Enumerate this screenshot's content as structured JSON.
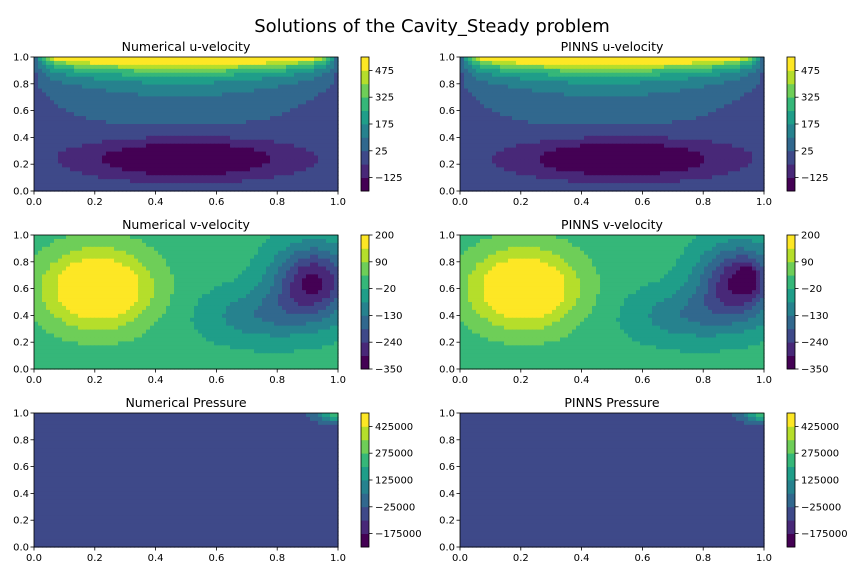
{
  "suptitle": "Solutions of the Cavity_Steady problem",
  "chart_data": [
    {
      "type": "contourf",
      "title": "Numerical u-velocity",
      "field": "u",
      "variant": "numerical",
      "xlim": [
        0,
        1
      ],
      "ylim": [
        0,
        1
      ],
      "xticks": [
        "0.0",
        "0.2",
        "0.4",
        "0.6",
        "0.8",
        "1.0"
      ],
      "yticks": [
        "0.0",
        "0.2",
        "0.4",
        "0.6",
        "0.8",
        "1.0"
      ],
      "colorbar": {
        "ticks": [
          "−125",
          "25",
          "175",
          "325",
          "475"
        ],
        "tick_values": [
          -125,
          25,
          175,
          325,
          475
        ],
        "range": [
          -200,
          550
        ],
        "levels": 10
      }
    },
    {
      "type": "contourf",
      "title": "PINNS u-velocity",
      "field": "u",
      "variant": "pinns",
      "xlim": [
        0,
        1
      ],
      "ylim": [
        0,
        1
      ],
      "xticks": [
        "0.0",
        "0.2",
        "0.4",
        "0.6",
        "0.8",
        "1.0"
      ],
      "yticks": [
        "0.0",
        "0.2",
        "0.4",
        "0.6",
        "0.8",
        "1.0"
      ],
      "colorbar": {
        "ticks": [
          "−125",
          "25",
          "175",
          "325",
          "475"
        ],
        "tick_values": [
          -125,
          25,
          175,
          325,
          475
        ],
        "range": [
          -200,
          550
        ],
        "levels": 10
      }
    },
    {
      "type": "contourf",
      "title": "Numerical v-velocity",
      "field": "v",
      "variant": "numerical",
      "xlim": [
        0,
        1
      ],
      "ylim": [
        0,
        1
      ],
      "xticks": [
        "0.0",
        "0.2",
        "0.4",
        "0.6",
        "0.8",
        "1.0"
      ],
      "yticks": [
        "0.0",
        "0.2",
        "0.4",
        "0.6",
        "0.8",
        "1.0"
      ],
      "colorbar": {
        "ticks": [
          "−350",
          "−240",
          "−130",
          "−20",
          "90",
          "200"
        ],
        "tick_values": [
          -350,
          -240,
          -130,
          -20,
          90,
          200
        ],
        "range": [
          -350,
          200
        ],
        "levels": 10
      }
    },
    {
      "type": "contourf",
      "title": "PINNS v-velocity",
      "field": "v",
      "variant": "pinns",
      "xlim": [
        0,
        1
      ],
      "ylim": [
        0,
        1
      ],
      "xticks": [
        "0.0",
        "0.2",
        "0.4",
        "0.6",
        "0.8",
        "1.0"
      ],
      "yticks": [
        "0.0",
        "0.2",
        "0.4",
        "0.6",
        "0.8",
        "1.0"
      ],
      "colorbar": {
        "ticks": [
          "−350",
          "−240",
          "−130",
          "−20",
          "90",
          "200"
        ],
        "tick_values": [
          -350,
          -240,
          -130,
          -20,
          90,
          200
        ],
        "range": [
          -350,
          200
        ],
        "levels": 10
      }
    },
    {
      "type": "contourf",
      "title": "Numerical Pressure",
      "field": "p",
      "variant": "numerical",
      "xlim": [
        0,
        1
      ],
      "ylim": [
        0,
        1
      ],
      "xticks": [
        "0.0",
        "0.2",
        "0.4",
        "0.6",
        "0.8",
        "1.0"
      ],
      "yticks": [
        "0.0",
        "0.2",
        "0.4",
        "0.6",
        "0.8",
        "1.0"
      ],
      "colorbar": {
        "ticks": [
          "−175000",
          "−25000",
          "125000",
          "275000",
          "425000"
        ],
        "tick_values": [
          -175000,
          -25000,
          125000,
          275000,
          425000
        ],
        "range": [
          -250000,
          500000
        ],
        "levels": 10
      }
    },
    {
      "type": "contourf",
      "title": "PINNS Pressure",
      "field": "p",
      "variant": "pinns",
      "xlim": [
        0,
        1
      ],
      "ylim": [
        0,
        1
      ],
      "xticks": [
        "0.0",
        "0.2",
        "0.4",
        "0.6",
        "0.8",
        "1.0"
      ],
      "yticks": [
        "0.0",
        "0.2",
        "0.4",
        "0.6",
        "0.8",
        "1.0"
      ],
      "colorbar": {
        "ticks": [
          "−175000",
          "−25000",
          "125000",
          "275000",
          "425000"
        ],
        "tick_values": [
          -175000,
          -25000,
          125000,
          275000,
          425000
        ],
        "range": [
          -250000,
          500000
        ],
        "levels": 10
      }
    }
  ],
  "colormap": [
    "#440154",
    "#482878",
    "#3e4989",
    "#31688e",
    "#26828e",
    "#1f9e89",
    "#35b779",
    "#6ece58",
    "#b5de2b",
    "#fde725"
  ]
}
